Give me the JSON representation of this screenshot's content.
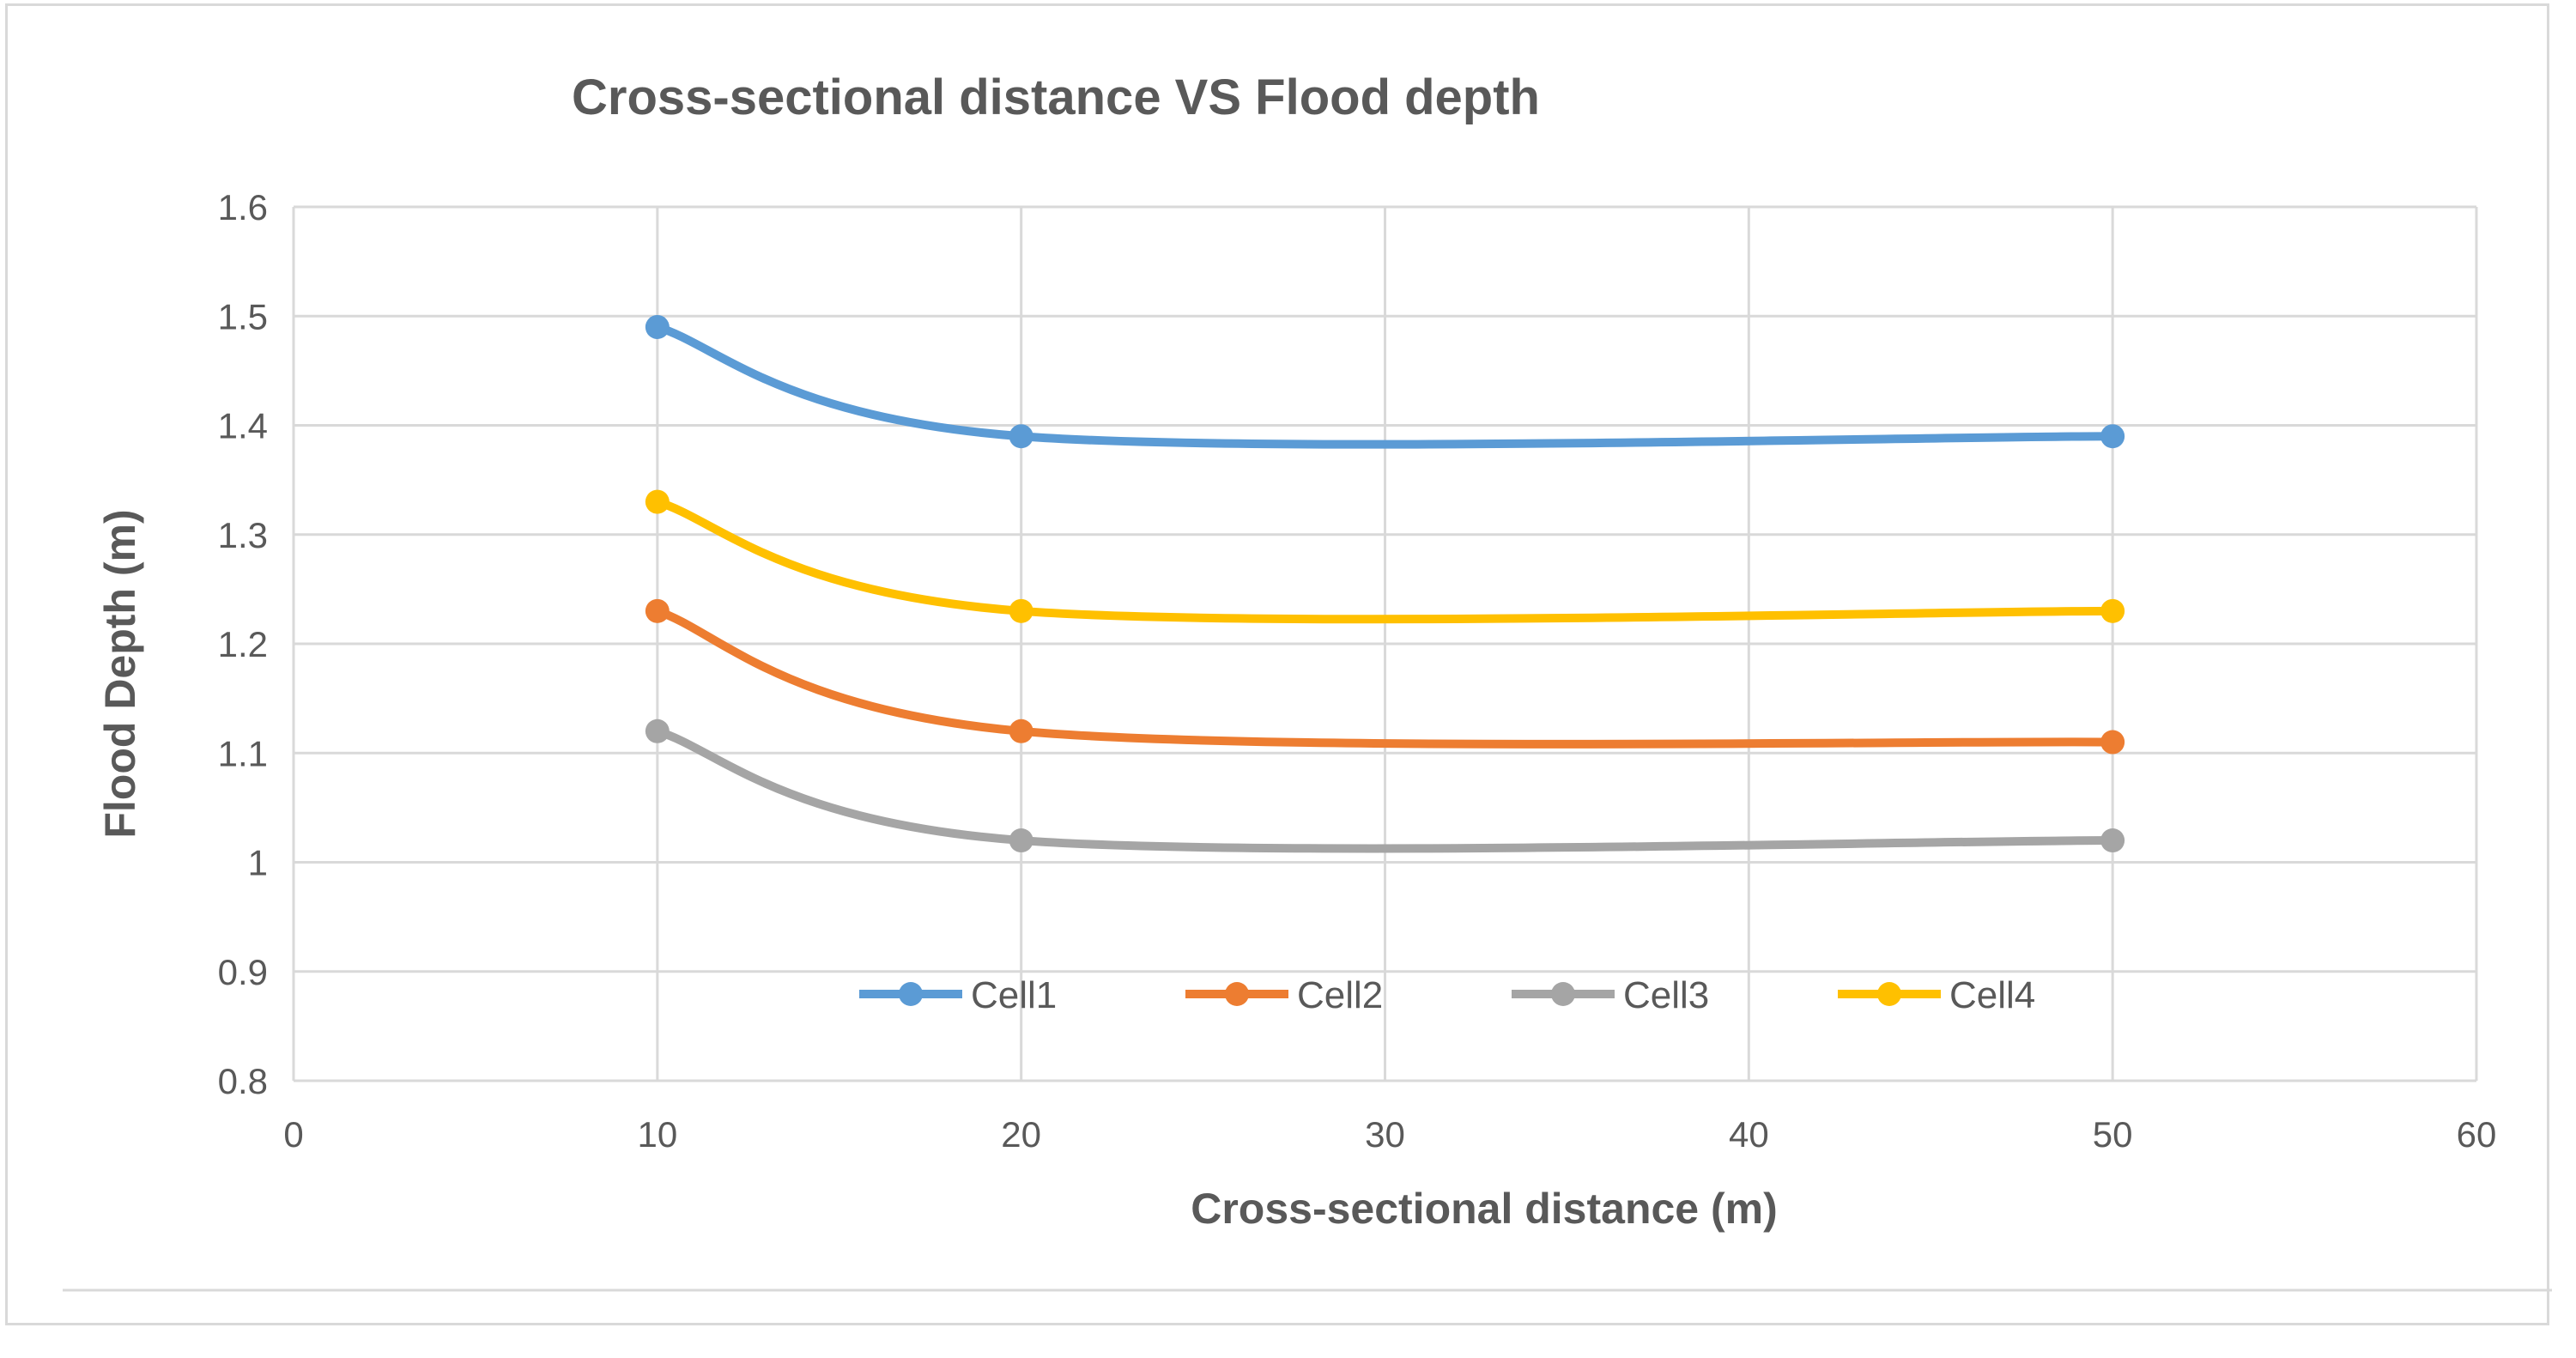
{
  "chart_data": {
    "type": "line",
    "title": "Cross-sectional distance VS Flood depth",
    "xlabel": "Cross-sectional distance (m)",
    "ylabel": "Flood Depth (m)",
    "xlim": [
      0,
      60
    ],
    "ylim": [
      0.8,
      1.6
    ],
    "x_ticks": [
      0,
      10,
      20,
      30,
      40,
      50,
      60
    ],
    "y_ticks": [
      0.8,
      0.9,
      1,
      1.1,
      1.2,
      1.3,
      1.4,
      1.5,
      1.6
    ],
    "x_tick_labels": [
      "0",
      "10",
      "20",
      "30",
      "40",
      "50",
      "60"
    ],
    "y_tick_labels": [
      "0.8",
      "0.9",
      "1",
      "1.1",
      "1.2",
      "1.3",
      "1.4",
      "1.5",
      "1.6"
    ],
    "grid": true,
    "smooth": true,
    "legend_position": "inside-bottom-center",
    "x": [
      10,
      20,
      50
    ],
    "series": [
      {
        "name": "Cell1",
        "color": "#5b9bd5",
        "values": [
          1.49,
          1.39,
          1.39
        ]
      },
      {
        "name": "Cell2",
        "color": "#ed7d31",
        "values": [
          1.23,
          1.12,
          1.11
        ]
      },
      {
        "name": "Cell3",
        "color": "#a5a5a5",
        "values": [
          1.12,
          1.02,
          1.02
        ]
      },
      {
        "name": "Cell4",
        "color": "#ffc000",
        "values": [
          1.33,
          1.23,
          1.23
        ]
      }
    ]
  }
}
